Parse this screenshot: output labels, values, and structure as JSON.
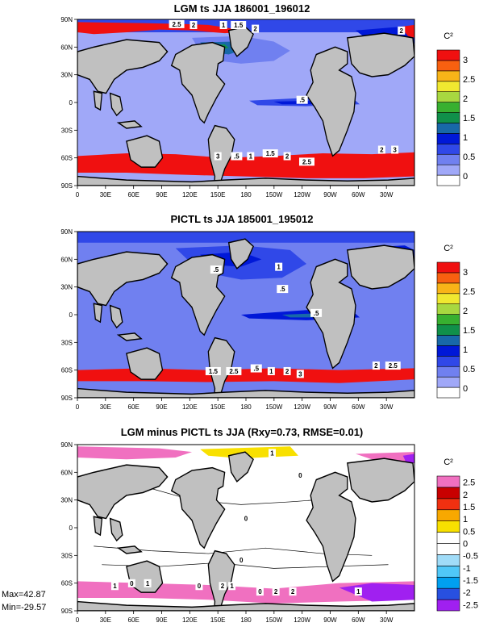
{
  "chart_data": [
    {
      "type": "heatmap",
      "title": "LGM ts JJA 186001_196012",
      "colorbar_units": "C²",
      "colorbar_ticks": [
        "0",
        "0.5",
        "1",
        "1.5",
        "2",
        "2.5",
        "3"
      ],
      "colorbar_colors": [
        "#ffffff",
        "#a0a8f8",
        "#7080f0",
        "#3048e8",
        "#0018d8",
        "#1868a8",
        "#10904a",
        "#38b030",
        "#a8d840",
        "#f0e830",
        "#f8b418",
        "#f86010",
        "#f01010"
      ],
      "x_ticks": [
        "0",
        "30E",
        "60E",
        "90E",
        "120E",
        "150E",
        "180",
        "150W",
        "120W",
        "90W",
        "60W",
        "30W"
      ],
      "y_ticks": [
        "90N",
        "60N",
        "30N",
        "0",
        "30S",
        "60S",
        "90S"
      ],
      "contour_labels": [
        {
          "text": "2.5",
          "lon": 106,
          "lat": 84
        },
        {
          "text": "2",
          "lon": 124,
          "lat": 83
        },
        {
          "text": "1",
          "lon": 156,
          "lat": 83
        },
        {
          "text": "1.5",
          "lon": 172,
          "lat": 83
        },
        {
          "text": "2",
          "lon": 190,
          "lat": 79
        },
        {
          "text": "2",
          "lon": 346,
          "lat": 77
        },
        {
          "text": ".5",
          "lon": 240,
          "lat": 2
        },
        {
          "text": "3",
          "lon": 150,
          "lat": -59
        },
        {
          "text": ".5",
          "lon": 170,
          "lat": -59
        },
        {
          "text": "1",
          "lon": 185,
          "lat": -59
        },
        {
          "text": "1.5",
          "lon": 206,
          "lat": -56
        },
        {
          "text": "2",
          "lon": 224,
          "lat": -59
        },
        {
          "text": "2.5",
          "lon": 245,
          "lat": -65
        },
        {
          "text": "2",
          "lon": 325,
          "lat": -52
        },
        {
          "text": "3",
          "lon": 339,
          "lat": -52
        }
      ]
    },
    {
      "type": "heatmap",
      "title": "PICTL ts JJA 185001_195012",
      "colorbar_units": "C²",
      "colorbar_ticks": [
        "0",
        "0.5",
        "1",
        "1.5",
        "2",
        "2.5",
        "3"
      ],
      "colorbar_colors": [
        "#ffffff",
        "#a0a8f8",
        "#7080f0",
        "#3048e8",
        "#0018d8",
        "#1868a8",
        "#10904a",
        "#38b030",
        "#a8d840",
        "#f0e830",
        "#f8b418",
        "#f86010",
        "#f01010"
      ],
      "x_ticks": [
        "0",
        "30E",
        "60E",
        "90E",
        "120E",
        "150E",
        "180",
        "150W",
        "120W",
        "90W",
        "60W",
        "30W"
      ],
      "y_ticks": [
        "90N",
        "60N",
        "30N",
        "0",
        "30S",
        "60S",
        "90S"
      ],
      "contour_labels": [
        {
          "text": ".5",
          "lon": 148,
          "lat": 48
        },
        {
          "text": "1",
          "lon": 215,
          "lat": 51
        },
        {
          "text": ".5",
          "lon": 219,
          "lat": 27
        },
        {
          "text": ".5",
          "lon": 255,
          "lat": 1
        },
        {
          "text": "1.5",
          "lon": 145,
          "lat": -62
        },
        {
          "text": "2.5",
          "lon": 167,
          "lat": -62
        },
        {
          "text": ".5",
          "lon": 191,
          "lat": -59
        },
        {
          "text": "1",
          "lon": 207,
          "lat": -62
        },
        {
          "text": "2",
          "lon": 224,
          "lat": -62
        },
        {
          "text": "3",
          "lon": 238,
          "lat": -65
        },
        {
          "text": "2",
          "lon": 319,
          "lat": -56
        },
        {
          "text": "2.5",
          "lon": 337,
          "lat": -56
        }
      ]
    },
    {
      "type": "heatmap",
      "title": "LGM minus PICTL ts JJA (Rxy=0.73, RMSE=0.01)",
      "colorbar_units": "C²",
      "colorbar_ticks": [
        "-2.5",
        "-2",
        "-1.5",
        "-1",
        "-0.5",
        "0",
        "0.5",
        "1",
        "1.5",
        "2",
        "2.5"
      ],
      "colorbar_colors": [
        "#a020f0",
        "#2850e0",
        "#00a0f0",
        "#50c8f8",
        "#a0dcf8",
        "#ffffff",
        "#ffffff",
        "#f8e000",
        "#f8a800",
        "#f03010",
        "#c80000",
        "#f070c0"
      ],
      "x_ticks": [
        "0",
        "30E",
        "60E",
        "90E",
        "120E",
        "150E",
        "180",
        "150W",
        "120W",
        "90W",
        "60W",
        "30W"
      ],
      "y_ticks": [
        "90N",
        "60N",
        "30N",
        "0",
        "30S",
        "60S",
        "90S"
      ],
      "stats": {
        "max": "Max=42.87",
        "min": "Min=-29.57"
      },
      "contour_labels": [
        {
          "text": "1",
          "lon": 208,
          "lat": 80
        },
        {
          "text": "0",
          "lon": 238,
          "lat": 56
        },
        {
          "text": "0",
          "lon": 180,
          "lat": 9
        },
        {
          "text": "0",
          "lon": 175,
          "lat": -36
        },
        {
          "text": "1",
          "lon": 40,
          "lat": -64
        },
        {
          "text": "0",
          "lon": 58,
          "lat": -61
        },
        {
          "text": "1",
          "lon": 75,
          "lat": -61
        },
        {
          "text": "0",
          "lon": 130,
          "lat": -64
        },
        {
          "text": "2",
          "lon": 155,
          "lat": -64
        },
        {
          "text": "1",
          "lon": 165,
          "lat": -64
        },
        {
          "text": "0",
          "lon": 195,
          "lat": -70
        },
        {
          "text": "2",
          "lon": 212,
          "lat": -70
        },
        {
          "text": "2",
          "lon": 230,
          "lat": -70
        },
        {
          "text": "1",
          "lon": 300,
          "lat": -70
        }
      ]
    }
  ]
}
